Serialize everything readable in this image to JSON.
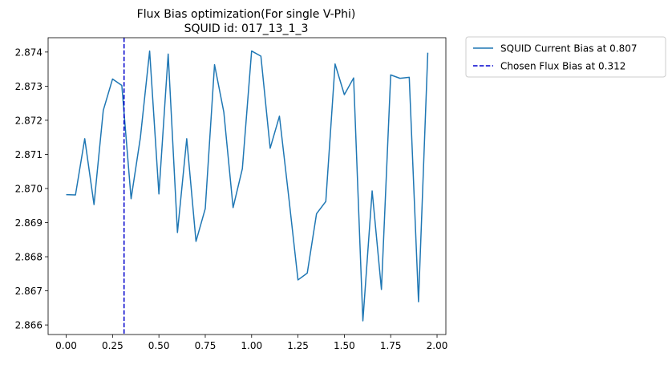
{
  "chart_data": {
    "type": "line",
    "title_line1": "Flux Bias optimization(For single V-Phi)",
    "title_line2": "SQUID id: 017_13_1_3",
    "xlabel": "",
    "ylabel": "",
    "xlim": [
      -0.0975,
      2.0475
    ],
    "ylim": [
      2.86572,
      2.87442
    ],
    "xticks": [
      0.0,
      0.25,
      0.5,
      0.75,
      1.0,
      1.25,
      1.5,
      1.75,
      2.0
    ],
    "xtick_labels": [
      "0.00",
      "0.25",
      "0.50",
      "0.75",
      "1.00",
      "1.25",
      "1.50",
      "1.75",
      "2.00"
    ],
    "yticks": [
      2.866,
      2.867,
      2.868,
      2.869,
      2.87,
      2.871,
      2.872,
      2.873,
      2.874
    ],
    "ytick_labels": [
      "2.866",
      "2.867",
      "2.868",
      "2.869",
      "2.870",
      "2.871",
      "2.872",
      "2.873",
      "2.874"
    ],
    "grid": false,
    "legend_position": "outside-top-right",
    "series": [
      {
        "name": "SQUID Current Bias at 0.807",
        "color": "#1f77b4",
        "style": "solid",
        "x": [
          0.0,
          0.05,
          0.1,
          0.15,
          0.2,
          0.25,
          0.3,
          0.35,
          0.4,
          0.45,
          0.5,
          0.55,
          0.6,
          0.65,
          0.7,
          0.75,
          0.8,
          0.85,
          0.9,
          0.95,
          1.0,
          1.05,
          1.1,
          1.15,
          1.2,
          1.25,
          1.3,
          1.35,
          1.4,
          1.45,
          1.5,
          1.55,
          1.6,
          1.65,
          1.7,
          1.75,
          1.8,
          1.85,
          1.9,
          1.95
        ],
        "y": [
          2.86982,
          2.86981,
          2.87146,
          2.86953,
          2.87229,
          2.87321,
          2.87302,
          2.8697,
          2.87149,
          2.87403,
          2.86984,
          2.87394,
          2.86871,
          2.87146,
          2.86845,
          2.86941,
          2.87363,
          2.87224,
          2.86944,
          2.87058,
          2.87403,
          2.87388,
          2.87118,
          2.87212,
          2.86976,
          2.86732,
          2.86752,
          2.86926,
          2.86962,
          2.87365,
          2.87275,
          2.87324,
          2.86612,
          2.86993,
          2.86704,
          2.87333,
          2.87323,
          2.87326,
          2.86668,
          2.87398
        ]
      },
      {
        "name": "Chosen Flux Bias at 0.312",
        "color": "#0000cd",
        "style": "dashed",
        "orientation": "vertical",
        "x_value": 0.312
      }
    ]
  }
}
